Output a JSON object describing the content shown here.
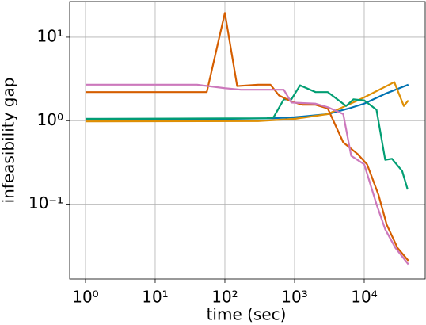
{
  "chart_data": {
    "type": "line",
    "xlabel": "time (sec)",
    "ylabel": "infeasibility gap",
    "xscale": "log",
    "yscale": "log",
    "grid": true,
    "xlim": [
      0.593,
      75000
    ],
    "ylim": [
      0.0127,
      26.7
    ],
    "xticks": [
      {
        "value": 1,
        "label": "10⁰"
      },
      {
        "value": 10,
        "label": "10¹"
      },
      {
        "value": 100,
        "label": "10²"
      },
      {
        "value": 1000,
        "label": "10³"
      },
      {
        "value": 10000,
        "label": "10⁴"
      }
    ],
    "yticks": [
      {
        "value": 0.1,
        "label": "10⁻¹"
      },
      {
        "value": 1,
        "label": "10⁰"
      },
      {
        "value": 10,
        "label": "10¹"
      }
    ],
    "series": [
      {
        "color": "#0173b2",
        "x": [
          1,
          100,
          500,
          1000,
          3000,
          6000,
          10000,
          20000,
          43000
        ],
        "values": [
          1.05,
          1.05,
          1.07,
          1.1,
          1.2,
          1.4,
          1.6,
          2.1,
          2.7
        ]
      },
      {
        "color": "#de8f05",
        "x": [
          1,
          300,
          1000,
          3000,
          10000,
          27000,
          37000,
          43000
        ],
        "values": [
          0.98,
          0.99,
          1.05,
          1.2,
          1.9,
          2.9,
          1.5,
          1.75
        ]
      },
      {
        "color": "#029e73",
        "x": [
          1,
          400,
          500,
          700,
          900,
          1200,
          2000,
          3000,
          5500,
          7000,
          10000,
          15000,
          20000,
          25000,
          35000,
          42000
        ],
        "values": [
          1.05,
          1.07,
          1.1,
          1.8,
          1.8,
          2.65,
          2.2,
          2.2,
          1.5,
          1.8,
          1.75,
          1.35,
          0.34,
          0.35,
          0.25,
          0.15
        ]
      },
      {
        "color": "#d55e00",
        "x": [
          1,
          55,
          100,
          150,
          300,
          450,
          600,
          900,
          1300,
          2000,
          3000,
          5000,
          8000,
          11000,
          16000,
          21000,
          30000,
          43000
        ],
        "values": [
          2.2,
          2.2,
          19.5,
          2.6,
          2.7,
          2.7,
          2.0,
          1.7,
          1.55,
          1.55,
          1.4,
          0.55,
          0.4,
          0.3,
          0.13,
          0.057,
          0.03,
          0.021
        ]
      },
      {
        "color": "#cc78bc",
        "x": [
          1,
          40,
          100,
          170,
          700,
          900,
          2000,
          3000,
          5000,
          6500,
          10000,
          15000,
          20000,
          28000,
          43000
        ],
        "values": [
          2.7,
          2.7,
          2.45,
          2.35,
          2.35,
          1.65,
          1.6,
          1.45,
          1.2,
          0.38,
          0.3,
          0.1,
          0.05,
          0.03,
          0.019
        ]
      }
    ]
  }
}
